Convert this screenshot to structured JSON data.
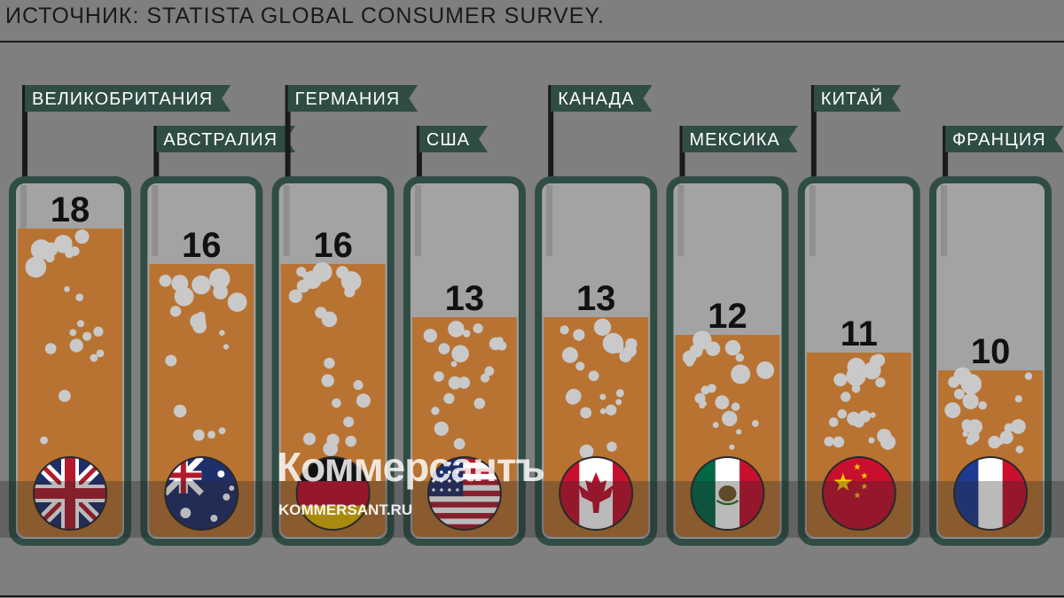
{
  "source": "ИСТОЧНИК: STATISTA GLOBAL CONSUMER SURVEY.",
  "watermark": {
    "name": "Коммерсантъ",
    "url": "KOMMERSANT.RU"
  },
  "colors": {
    "background": "#7f7f7f",
    "tube_border": "#2f4c45",
    "liquid": "#b87333",
    "bubble": "#c9c9c9",
    "flag_sign": "#2f4c45",
    "text": "#111111"
  },
  "chart_data": {
    "type": "bar",
    "title": "",
    "categories": [
      "ВЕЛИКОБРИТАНИЯ",
      "АВСТРАЛИЯ",
      "ГЕРМАНИЯ",
      "США",
      "КАНАДА",
      "МЕКСИКА",
      "КИТАЙ",
      "ФРАНЦИЯ"
    ],
    "values": [
      18,
      16,
      16,
      13,
      13,
      12,
      11,
      10
    ],
    "flags": [
      "uk-flag-icon",
      "australia-flag-icon",
      "germany-flag-icon",
      "usa-flag-icon",
      "canada-flag-icon",
      "mexico-flag-icon",
      "china-flag-icon",
      "france-flag-icon"
    ],
    "ylim": [
      0,
      22
    ],
    "grid": false,
    "legend": "none"
  }
}
